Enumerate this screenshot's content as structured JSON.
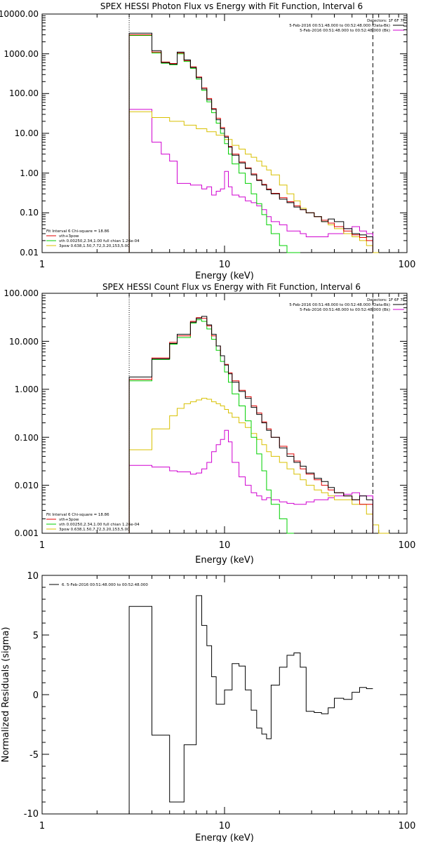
{
  "chart_data": [
    {
      "type": "line",
      "title": "SPEX HESSI Photon Flux vs Energy with Fit Function, Interval 6",
      "xlabel": "Energy (keV)",
      "ylabel": "",
      "xscale": "log",
      "yscale": "log",
      "xlim": [
        1,
        100
      ],
      "ylim": [
        0.01,
        10000
      ],
      "x_ticks": [
        "1",
        "10",
        "100"
      ],
      "y_ticks": [
        "10000.00",
        "1000.00",
        "100.00",
        "10.00",
        "1.00",
        "0.10",
        "0.01"
      ],
      "vlines": [
        {
          "x": 3,
          "style": "dotted"
        },
        {
          "x": 65,
          "style": "dashed"
        }
      ],
      "legend_top": {
        "header": "Detectors: 1F 6F 7F",
        "entries": [
          {
            "label": "5-Feb-2016 00:51:48.000 to 00:52:48.000 (Data-Bk)",
            "color": "#000000"
          },
          {
            "label": "5-Feb-2016 00:51:48.000 to 00:52:48.000 (Bk)",
            "color": "#d000d0"
          }
        ]
      },
      "legend_bottom": {
        "header": "Fit Interval  6   Chi-square = 18.86",
        "entries": [
          {
            "label": "vth+3pow",
            "color": "#e00000"
          },
          {
            "label": "vth 0.00250,2.34,1.00  full chian 1.26e-04",
            "color": "#00d000"
          },
          {
            "label": "3pow 0.638,1.50,7.72,3.20,153,5.00",
            "color": "#d8c000"
          }
        ]
      },
      "bin_edges": [
        3,
        3.5,
        4,
        4.5,
        5,
        5.5,
        6,
        6.5,
        7,
        7.5,
        8,
        8.5,
        9,
        9.5,
        10,
        10.5,
        11,
        12,
        13,
        14,
        15,
        16,
        17,
        18,
        20,
        22,
        24,
        26,
        28,
        31,
        34,
        37,
        40,
        45,
        50,
        55,
        60,
        65,
        70
      ],
      "series": [
        {
          "name": "Data-Bk",
          "color": "#000000",
          "values": [
            3300,
            3300,
            1200,
            600,
            550,
            1100,
            700,
            450,
            250,
            130,
            70,
            40,
            22,
            13,
            8,
            4.5,
            2.8,
            1.8,
            1.3,
            0.9,
            0.65,
            0.5,
            0.38,
            0.3,
            0.22,
            0.18,
            0.14,
            0.12,
            0.1,
            0.08,
            0.06,
            0.07,
            0.06,
            0.04,
            0.03,
            0.028,
            0.025,
            null
          ]
        },
        {
          "name": "vth+3pow",
          "color": "#e00000",
          "values": [
            3000,
            3000,
            1100,
            620,
            570,
            1050,
            680,
            470,
            260,
            140,
            75,
            42,
            24,
            14,
            8.5,
            4.7,
            3,
            1.9,
            1.35,
            0.95,
            0.68,
            0.52,
            0.4,
            0.31,
            0.24,
            0.19,
            0.15,
            0.12,
            0.1,
            0.08,
            0.065,
            0.055,
            0.045,
            0.035,
            0.028,
            0.024,
            0.02,
            null
          ]
        },
        {
          "name": "vth",
          "color": "#00d000",
          "values": [
            2900,
            2900,
            1050,
            580,
            530,
            1000,
            640,
            430,
            230,
            120,
            62,
            33,
            18,
            10,
            5.5,
            3,
            1.7,
            1,
            0.55,
            0.3,
            0.17,
            0.09,
            0.05,
            0.03,
            0.015,
            0.01,
            0.008,
            null,
            null,
            null,
            null,
            null,
            null,
            null,
            null,
            null,
            null,
            null
          ]
        },
        {
          "name": "3pow",
          "color": "#d8c000",
          "values": [
            35,
            35,
            25,
            25,
            20,
            20,
            16,
            16,
            13,
            13,
            11,
            11,
            9,
            9,
            7,
            7,
            5,
            4,
            3,
            2.5,
            2,
            1.5,
            1.2,
            0.9,
            0.5,
            0.3,
            0.2,
            0.13,
            0.1,
            0.08,
            0.06,
            0.05,
            0.04,
            0.03,
            0.025,
            0.02,
            0.015,
            0.01
          ]
        },
        {
          "name": "Bk",
          "color": "#d000d0",
          "values": [
            40,
            40,
            6,
            3,
            2,
            0.55,
            0.55,
            0.5,
            0.5,
            0.4,
            0.45,
            0.28,
            0.35,
            0.4,
            1.1,
            0.45,
            0.28,
            0.25,
            0.2,
            0.18,
            0.15,
            0.12,
            0.08,
            0.06,
            0.05,
            0.035,
            0.035,
            0.03,
            0.025,
            0.025,
            0.025,
            0.03,
            0.03,
            0.04,
            0.045,
            0.035,
            0.03,
            null
          ]
        }
      ]
    },
    {
      "type": "line",
      "title": "SPEX HESSI Count Flux vs Energy with Fit Function, Interval 6",
      "xlabel": "Energy (keV)",
      "ylabel": "",
      "xscale": "log",
      "yscale": "log",
      "xlim": [
        1,
        100
      ],
      "ylim": [
        0.001,
        100
      ],
      "x_ticks": [
        "1",
        "10",
        "100"
      ],
      "y_ticks": [
        "100.000",
        "10.000",
        "1.000",
        "0.100",
        "0.010",
        "0.001"
      ],
      "vlines": [
        {
          "x": 3,
          "style": "dotted"
        },
        {
          "x": 65,
          "style": "dashed"
        }
      ],
      "legend_top": {
        "header": "Detectors: 1F 6F 7F",
        "entries": [
          {
            "label": "5-Feb-2016 00:51:48.000 to 00:52:48.000 (Data-Bk)",
            "color": "#000000"
          },
          {
            "label": "5-Feb-2016 00:51:48.000 to 00:52:48.000 (Bk)",
            "color": "#d000d0"
          }
        ]
      },
      "legend_bottom": {
        "header": "Fit Interval  6   Chi-square = 18.86",
        "entries": [
          {
            "label": "vth+3pow",
            "color": "#e00000"
          },
          {
            "label": "vth 0.00250,2.34,1.00  full chian 1.26e-04",
            "color": "#00d000"
          },
          {
            "label": "3pow 0.638,1.50,7.72,3.20,153,5.00",
            "color": "#d8c000"
          }
        ]
      },
      "bin_edges": [
        3,
        3.5,
        4,
        4.5,
        5,
        5.5,
        6,
        6.5,
        7,
        7.5,
        8,
        8.5,
        9,
        9.5,
        10,
        10.5,
        11,
        12,
        13,
        14,
        15,
        16,
        17,
        18,
        20,
        22,
        24,
        26,
        28,
        31,
        34,
        37,
        40,
        45,
        50,
        55,
        60,
        65,
        70,
        80
      ],
      "series": [
        {
          "name": "Data-Bk",
          "color": "#000000",
          "values": [
            1.8,
            1.8,
            4.3,
            4.3,
            9,
            14,
            14,
            25,
            30,
            33,
            22,
            14,
            8,
            5,
            3.2,
            2.1,
            1.4,
            0.9,
            0.65,
            0.42,
            0.3,
            0.2,
            0.14,
            0.1,
            0.06,
            0.04,
            0.03,
            0.025,
            0.018,
            0.014,
            0.012,
            0.009,
            0.007,
            0.006,
            0.005,
            0.006,
            0.005,
            null,
            null
          ]
        },
        {
          "name": "vth+3pow",
          "color": "#e00000",
          "values": [
            1.6,
            1.6,
            4.5,
            4.5,
            9.5,
            13,
            13,
            26,
            31,
            30,
            21,
            13,
            8,
            5,
            3.3,
            2.2,
            1.5,
            0.95,
            0.7,
            0.45,
            0.32,
            0.21,
            0.15,
            0.1,
            0.065,
            0.045,
            0.032,
            0.022,
            0.017,
            0.013,
            0.01,
            0.008,
            0.007,
            0.006,
            0.005,
            0.004,
            0.004,
            null,
            null
          ]
        },
        {
          "name": "vth",
          "color": "#00d000",
          "values": [
            1.5,
            1.5,
            4.2,
            4.2,
            8.7,
            12,
            12,
            24,
            28,
            26,
            18,
            11,
            6.5,
            3.8,
            2.3,
            1.4,
            0.8,
            0.45,
            0.22,
            0.1,
            0.045,
            0.02,
            0.008,
            0.004,
            0.002,
            0.001,
            null,
            null,
            null,
            null,
            null,
            null,
            null,
            null,
            null,
            null,
            null,
            null,
            null
          ]
        },
        {
          "name": "3pow",
          "color": "#d8c000",
          "values": [
            0.055,
            0.055,
            0.15,
            0.15,
            0.28,
            0.4,
            0.5,
            0.55,
            0.6,
            0.65,
            0.62,
            0.55,
            0.5,
            0.45,
            0.38,
            0.32,
            0.26,
            0.2,
            0.16,
            0.12,
            0.09,
            0.07,
            0.05,
            0.04,
            0.03,
            0.022,
            0.017,
            0.013,
            0.01,
            0.008,
            0.007,
            0.006,
            0.005,
            0.005,
            0.004,
            0.004,
            0.0025,
            0.0015,
            0.001
          ]
        },
        {
          "name": "Bk",
          "color": "#d000d0",
          "values": [
            0.026,
            0.026,
            0.024,
            0.024,
            0.02,
            0.019,
            0.019,
            0.017,
            0.018,
            0.022,
            0.03,
            0.05,
            0.07,
            0.09,
            0.14,
            0.08,
            0.03,
            0.015,
            0.01,
            0.007,
            0.006,
            0.005,
            0.0055,
            0.005,
            0.0045,
            0.0042,
            0.004,
            0.004,
            0.0045,
            0.005,
            0.005,
            0.0055,
            0.006,
            0.0065,
            0.007,
            0.006,
            0.006,
            null,
            null
          ]
        }
      ]
    },
    {
      "type": "line",
      "title": "",
      "xlabel": "Energy (keV)",
      "ylabel": "Normalized Residuals (sigma)",
      "xscale": "log",
      "yscale": "linear",
      "xlim": [
        1,
        100
      ],
      "ylim": [
        -10,
        10
      ],
      "x_ticks": [
        "1",
        "10",
        "100"
      ],
      "y_ticks": [
        "10",
        "5",
        "0",
        "-5",
        "-10"
      ],
      "legend": "6.  5-Feb-2016 00:51:48.000 to 00:52:48.000",
      "bin_edges": [
        3,
        4,
        5,
        6,
        7,
        7.5,
        8,
        8.5,
        9,
        10,
        11,
        12,
        13,
        14,
        15,
        16,
        17,
        18,
        20,
        22,
        24,
        26,
        28,
        31,
        34,
        37,
        40,
        45,
        50,
        55,
        60,
        65
      ],
      "series": [
        {
          "name": "6",
          "color": "#000000",
          "values": [
            7.4,
            -3.4,
            -9,
            -4.2,
            8.3,
            5.8,
            4.1,
            1.5,
            -0.8,
            0.4,
            2.6,
            2.4,
            0.4,
            -1.3,
            -2.8,
            -3.3,
            -3.7,
            0.8,
            2.3,
            3.3,
            3.5,
            2.3,
            -1.4,
            -1.5,
            -1.6,
            -1.1,
            -0.3,
            -0.4,
            0.2,
            0.6,
            0.5
          ]
        }
      ]
    }
  ]
}
